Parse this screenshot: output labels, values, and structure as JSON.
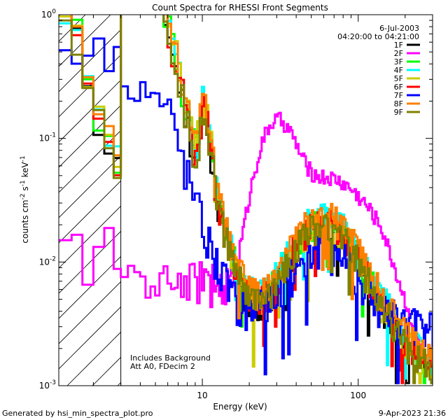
{
  "chart_data": {
    "type": "line",
    "title": "Count Spectra for RHESSI Front Segments",
    "xlabel": "Energy (keV)",
    "ylabel_parts": [
      "counts cm",
      "-2",
      " s",
      "-1",
      " keV",
      "-1"
    ],
    "x_scale": "log",
    "y_scale": "log",
    "xlim": [
      1.2,
      300
    ],
    "ylim": [
      0.001,
      1
    ],
    "x_ticks": [
      {
        "value": 10,
        "label": "10"
      },
      {
        "value": 100,
        "label": "100"
      }
    ],
    "y_ticks": [
      {
        "value": 1,
        "base": "10",
        "exp": "0"
      },
      {
        "value": 0.1,
        "base": "10",
        "exp": "-1"
      },
      {
        "value": 0.01,
        "base": "10",
        "exp": "-2"
      },
      {
        "value": 0.001,
        "base": "10",
        "exp": "-3"
      }
    ],
    "date": "6-Jul-2003",
    "time_range": "04:20:00 to 04:21:00",
    "hatched_region_xmax": 3,
    "annotations": [
      "Includes Background",
      "Att A0, FDecim 2"
    ],
    "series": [
      {
        "name": "1F",
        "color": "#000000"
      },
      {
        "name": "2F",
        "color": "#ff00ff"
      },
      {
        "name": "3F",
        "color": "#00ff00"
      },
      {
        "name": "4F",
        "color": "#00ffff"
      },
      {
        "name": "5F",
        "color": "#cccc00"
      },
      {
        "name": "6F",
        "color": "#ff0000"
      },
      {
        "name": "7F",
        "color": "#0000ff"
      },
      {
        "name": "8F",
        "color": "#ff8000"
      },
      {
        "name": "9F",
        "color": "#808000"
      }
    ]
  },
  "footer": {
    "left": "Generated by hsi_min_spectra_plot.pro",
    "right": "9-Apr-2023 21:36"
  }
}
